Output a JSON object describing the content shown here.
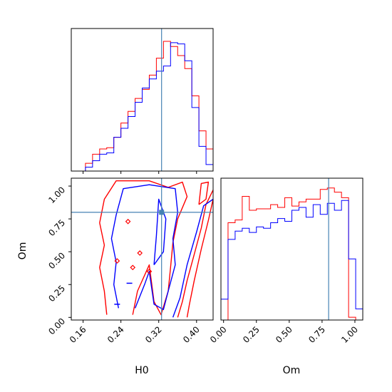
{
  "chart_data": {
    "type": "corner",
    "colors": {
      "run_a": "#ff0000",
      "run_b": "#0000ff",
      "truth": "#4682b4"
    },
    "parameters": [
      {
        "name": "H0",
        "range": [
          0.135,
          0.435
        ],
        "ticks": [
          0.16,
          0.24,
          0.32,
          0.4
        ],
        "tick_labels": [
          "0.16",
          "0.24",
          "0.32",
          "0.40"
        ],
        "truth": 0.326
      },
      {
        "name": "Om",
        "range": [
          -0.02,
          1.06
        ],
        "ticks": [
          0.0,
          0.25,
          0.5,
          0.75,
          1.0
        ],
        "tick_labels": [
          "0.00",
          "0.25",
          "0.50",
          "0.75",
          "1.00"
        ],
        "truth": 0.8
      }
    ],
    "hist_H0": {
      "bin_edges": [
        0.135,
        0.15,
        0.165,
        0.18,
        0.195,
        0.21,
        0.225,
        0.24,
        0.255,
        0.27,
        0.285,
        0.3,
        0.315,
        0.33,
        0.345,
        0.36,
        0.375,
        0.39,
        0.405,
        0.42,
        0.435
      ],
      "series": [
        {
          "color": "red",
          "counts": [
            0,
            0,
            0.06,
            0.13,
            0.17,
            0.18,
            0.26,
            0.37,
            0.46,
            0.56,
            0.63,
            0.74,
            0.87,
            1.0,
            0.96,
            0.89,
            0.79,
            0.58,
            0.31,
            0.17
          ]
        },
        {
          "color": "blue",
          "counts": [
            0,
            0,
            0.03,
            0.08,
            0.13,
            0.14,
            0.26,
            0.33,
            0.42,
            0.53,
            0.64,
            0.71,
            0.77,
            0.81,
            0.99,
            0.98,
            0.85,
            0.49,
            0.19,
            0.05
          ]
        }
      ]
    },
    "hist_Om": {
      "bin_edges": [
        -0.02,
        0.034,
        0.088,
        0.142,
        0.196,
        0.25,
        0.304,
        0.358,
        0.412,
        0.466,
        0.52,
        0.574,
        0.628,
        0.682,
        0.736,
        0.79,
        0.844,
        0.898,
        0.952,
        1.006,
        1.06
      ],
      "series": [
        {
          "color": "red",
          "counts": [
            0,
            0.7,
            0.72,
            0.89,
            0.79,
            0.8,
            0.8,
            0.83,
            0.81,
            0.88,
            0.82,
            0.85,
            0.87,
            0.87,
            0.94,
            0.95,
            0.92,
            0.88,
            0.02,
            0
          ]
        },
        {
          "color": "blue",
          "counts": [
            0.15,
            0.58,
            0.64,
            0.66,
            0.63,
            0.67,
            0.66,
            0.7,
            0.73,
            0.71,
            0.79,
            0.81,
            0.74,
            0.83,
            0.76,
            0.84,
            0.79,
            0.86,
            0.44,
            0.08
          ]
        }
      ]
    },
    "contours": {
      "red": [
        [
          [
            0.21,
            0.02
          ],
          [
            0.205,
            0.2
          ],
          [
            0.195,
            0.38
          ],
          [
            0.205,
            0.55
          ],
          [
            0.195,
            0.72
          ],
          [
            0.205,
            0.9
          ],
          [
            0.23,
            1.04
          ],
          [
            0.3,
            1.04
          ],
          [
            0.34,
            0.99
          ],
          [
            0.37,
            1.03
          ],
          [
            0.38,
            0.92
          ],
          [
            0.36,
            0.75
          ],
          [
            0.35,
            0.57
          ],
          [
            0.345,
            0.38
          ],
          [
            0.34,
            0.2
          ],
          [
            0.325,
            0.02
          ],
          [
            0.31,
            0.12
          ],
          [
            0.3,
            0.4
          ],
          [
            0.275,
            0.2
          ],
          [
            0.265,
            0.02
          ]
        ],
        [
          [
            0.36,
            0.0
          ],
          [
            0.37,
            0.12
          ],
          [
            0.38,
            0.28
          ],
          [
            0.395,
            0.48
          ],
          [
            0.41,
            0.68
          ],
          [
            0.42,
            0.86
          ],
          [
            0.435,
            0.97
          ]
        ],
        [
          [
            0.38,
            0.0
          ],
          [
            0.385,
            0.1
          ],
          [
            0.395,
            0.28
          ],
          [
            0.41,
            0.52
          ],
          [
            0.425,
            0.74
          ],
          [
            0.435,
            0.9
          ]
        ],
        [
          [
            0.405,
            0.86
          ],
          [
            0.41,
            1.02
          ],
          [
            0.425,
            1.03
          ],
          [
            0.42,
            0.9
          ],
          [
            0.405,
            0.86
          ]
        ]
      ],
      "blue": [
        [
          [
            0.235,
            0.07
          ],
          [
            0.225,
            0.25
          ],
          [
            0.23,
            0.42
          ],
          [
            0.22,
            0.6
          ],
          [
            0.23,
            0.78
          ],
          [
            0.245,
            0.98
          ],
          [
            0.3,
            1.01
          ],
          [
            0.355,
            0.98
          ],
          [
            0.36,
            0.8
          ],
          [
            0.35,
            0.6
          ],
          [
            0.355,
            0.4
          ],
          [
            0.34,
            0.2
          ],
          [
            0.33,
            0.06
          ],
          [
            0.31,
            0.1
          ],
          [
            0.3,
            0.35
          ],
          [
            0.29,
            0.25
          ],
          [
            0.27,
            0.07
          ]
        ],
        [
          [
            0.35,
            0.0
          ],
          [
            0.365,
            0.15
          ],
          [
            0.38,
            0.4
          ],
          [
            0.4,
            0.65
          ],
          [
            0.415,
            0.85
          ],
          [
            0.435,
            0.9
          ]
        ],
        [
          [
            0.31,
            0.4
          ],
          [
            0.315,
            0.62
          ],
          [
            0.32,
            0.9
          ],
          [
            0.335,
            0.75
          ],
          [
            0.33,
            0.5
          ],
          [
            0.31,
            0.4
          ]
        ]
      ]
    },
    "red_markers": [
      [
        0.232,
        0.43
      ],
      [
        0.255,
        0.73
      ],
      [
        0.28,
        0.49
      ],
      [
        0.3,
        0.35
      ],
      [
        0.265,
        0.38
      ]
    ],
    "blue_markers": [
      [
        0.258,
        0.26
      ],
      [
        0.232,
        0.1
      ]
    ]
  }
}
